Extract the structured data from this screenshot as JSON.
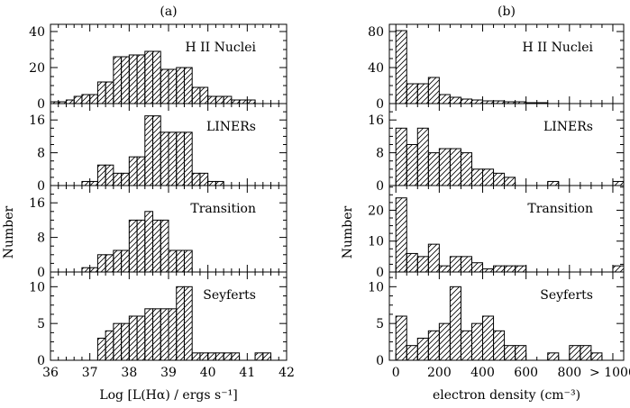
{
  "chart_data": [
    {
      "type": "bar",
      "panel_title": "(a)",
      "xlabel": "Log [L(Hα) / ergs s⁻¹]",
      "ylabel": "Number",
      "xlim": [
        36,
        42
      ],
      "x_ticks": [
        "36",
        "37",
        "38",
        "39",
        "40",
        "41",
        "42"
      ],
      "bin_width": 0.2,
      "subplots": [
        {
          "name": "H II Nuclei",
          "ylim": [
            0,
            44
          ],
          "y_ticks": [
            "0",
            "20",
            "40"
          ],
          "bins": [
            {
              "x0": 36.0,
              "x1": 36.2,
              "count": 1
            },
            {
              "x0": 36.2,
              "x1": 36.4,
              "count": 1
            },
            {
              "x0": 36.4,
              "x1": 36.6,
              "count": 2
            },
            {
              "x0": 36.6,
              "x1": 36.8,
              "count": 4
            },
            {
              "x0": 36.8,
              "x1": 37.0,
              "count": 5
            },
            {
              "x0": 37.0,
              "x1": 37.2,
              "count": 5
            },
            {
              "x0": 37.2,
              "x1": 37.4,
              "count": 12
            },
            {
              "x0": 37.4,
              "x1": 37.6,
              "count": 12
            },
            {
              "x0": 37.6,
              "x1": 37.8,
              "count": 26
            },
            {
              "x0": 37.8,
              "x1": 38.0,
              "count": 26
            },
            {
              "x0": 38.0,
              "x1": 38.2,
              "count": 27
            },
            {
              "x0": 38.2,
              "x1": 38.4,
              "count": 27
            },
            {
              "x0": 38.4,
              "x1": 38.6,
              "count": 29
            },
            {
              "x0": 38.6,
              "x1": 38.8,
              "count": 29
            },
            {
              "x0": 38.8,
              "x1": 39.0,
              "count": 19
            },
            {
              "x0": 39.0,
              "x1": 39.2,
              "count": 19
            },
            {
              "x0": 39.2,
              "x1": 39.4,
              "count": 20
            },
            {
              "x0": 39.4,
              "x1": 39.6,
              "count": 20
            },
            {
              "x0": 39.6,
              "x1": 39.8,
              "count": 9
            },
            {
              "x0": 39.8,
              "x1": 40.0,
              "count": 9
            },
            {
              "x0": 40.0,
              "x1": 40.2,
              "count": 4
            },
            {
              "x0": 40.2,
              "x1": 40.4,
              "count": 4
            },
            {
              "x0": 40.4,
              "x1": 40.6,
              "count": 4
            },
            {
              "x0": 40.6,
              "x1": 40.8,
              "count": 2
            },
            {
              "x0": 40.8,
              "x1": 41.0,
              "count": 2
            },
            {
              "x0": 41.0,
              "x1": 41.2,
              "count": 2
            }
          ]
        },
        {
          "name": "LINERs",
          "ylim": [
            0,
            20
          ],
          "y_ticks": [
            "0",
            "8",
            "16"
          ],
          "bins": [
            {
              "x0": 36.8,
              "x1": 37.0,
              "count": 1
            },
            {
              "x0": 37.0,
              "x1": 37.2,
              "count": 1
            },
            {
              "x0": 37.2,
              "x1": 37.4,
              "count": 5
            },
            {
              "x0": 37.4,
              "x1": 37.6,
              "count": 5
            },
            {
              "x0": 37.6,
              "x1": 37.8,
              "count": 3
            },
            {
              "x0": 37.8,
              "x1": 38.0,
              "count": 3
            },
            {
              "x0": 38.0,
              "x1": 38.2,
              "count": 7
            },
            {
              "x0": 38.2,
              "x1": 38.4,
              "count": 7
            },
            {
              "x0": 38.4,
              "x1": 38.6,
              "count": 17
            },
            {
              "x0": 38.6,
              "x1": 38.8,
              "count": 17
            },
            {
              "x0": 38.8,
              "x1": 39.0,
              "count": 13
            },
            {
              "x0": 39.0,
              "x1": 39.2,
              "count": 13
            },
            {
              "x0": 39.2,
              "x1": 39.4,
              "count": 13
            },
            {
              "x0": 39.4,
              "x1": 39.6,
              "count": 13
            },
            {
              "x0": 39.6,
              "x1": 39.8,
              "count": 3
            },
            {
              "x0": 39.8,
              "x1": 40.0,
              "count": 3
            },
            {
              "x0": 40.0,
              "x1": 40.2,
              "count": 1
            },
            {
              "x0": 40.2,
              "x1": 40.4,
              "count": 1
            }
          ]
        },
        {
          "name": "Transition",
          "ylim": [
            0,
            20
          ],
          "y_ticks": [
            "0",
            "8",
            "16"
          ],
          "bins": [
            {
              "x0": 36.8,
              "x1": 37.0,
              "count": 1
            },
            {
              "x0": 37.0,
              "x1": 37.2,
              "count": 1
            },
            {
              "x0": 37.2,
              "x1": 37.4,
              "count": 4
            },
            {
              "x0": 37.4,
              "x1": 37.6,
              "count": 4
            },
            {
              "x0": 37.6,
              "x1": 37.8,
              "count": 5
            },
            {
              "x0": 37.8,
              "x1": 38.0,
              "count": 5
            },
            {
              "x0": 38.0,
              "x1": 38.2,
              "count": 12
            },
            {
              "x0": 38.2,
              "x1": 38.4,
              "count": 12
            },
            {
              "x0": 38.4,
              "x1": 38.6,
              "count": 14
            },
            {
              "x0": 38.6,
              "x1": 38.8,
              "count": 12
            },
            {
              "x0": 38.8,
              "x1": 39.0,
              "count": 12
            },
            {
              "x0": 39.0,
              "x1": 39.2,
              "count": 5
            },
            {
              "x0": 39.2,
              "x1": 39.4,
              "count": 5
            },
            {
              "x0": 39.4,
              "x1": 39.6,
              "count": 5
            }
          ]
        },
        {
          "name": "Seyferts",
          "ylim": [
            0,
            12
          ],
          "y_ticks": [
            "0",
            "5",
            "10"
          ],
          "bins": [
            {
              "x0": 37.2,
              "x1": 37.4,
              "count": 3
            },
            {
              "x0": 37.4,
              "x1": 37.6,
              "count": 4
            },
            {
              "x0": 37.6,
              "x1": 37.8,
              "count": 5
            },
            {
              "x0": 37.8,
              "x1": 38.0,
              "count": 5
            },
            {
              "x0": 38.0,
              "x1": 38.2,
              "count": 6
            },
            {
              "x0": 38.2,
              "x1": 38.4,
              "count": 6
            },
            {
              "x0": 38.4,
              "x1": 38.6,
              "count": 7
            },
            {
              "x0": 38.6,
              "x1": 38.8,
              "count": 7
            },
            {
              "x0": 38.8,
              "x1": 39.0,
              "count": 7
            },
            {
              "x0": 39.0,
              "x1": 39.2,
              "count": 7
            },
            {
              "x0": 39.2,
              "x1": 39.4,
              "count": 10
            },
            {
              "x0": 39.4,
              "x1": 39.6,
              "count": 10
            },
            {
              "x0": 39.6,
              "x1": 39.8,
              "count": 1
            },
            {
              "x0": 39.8,
              "x1": 40.0,
              "count": 1
            },
            {
              "x0": 40.0,
              "x1": 40.2,
              "count": 1
            },
            {
              "x0": 40.2,
              "x1": 40.4,
              "count": 1
            },
            {
              "x0": 40.4,
              "x1": 40.6,
              "count": 1
            },
            {
              "x0": 40.6,
              "x1": 40.8,
              "count": 1
            },
            {
              "x0": 41.2,
              "x1": 41.4,
              "count": 1
            },
            {
              "x0": 41.4,
              "x1": 41.6,
              "count": 1
            }
          ]
        }
      ]
    },
    {
      "type": "bar",
      "panel_title": "(b)",
      "xlabel": "electron density (cm⁻³)",
      "ylabel": "Number",
      "xlim": [
        -30,
        1050
      ],
      "x_ticks": [
        "0",
        "200",
        "400",
        "600",
        "800",
        "> 1000"
      ],
      "bin_width": 50,
      "subplots": [
        {
          "name": "H II Nuclei",
          "ylim": [
            0,
            88
          ],
          "y_ticks": [
            "0",
            "40",
            "80"
          ],
          "bins": [
            {
              "x0": 0,
              "x1": 50,
              "count": 81
            },
            {
              "x0": 50,
              "x1": 100,
              "count": 22
            },
            {
              "x0": 100,
              "x1": 150,
              "count": 22
            },
            {
              "x0": 150,
              "x1": 200,
              "count": 29
            },
            {
              "x0": 200,
              "x1": 250,
              "count": 10
            },
            {
              "x0": 250,
              "x1": 300,
              "count": 7
            },
            {
              "x0": 300,
              "x1": 350,
              "count": 5
            },
            {
              "x0": 350,
              "x1": 400,
              "count": 4
            },
            {
              "x0": 400,
              "x1": 450,
              "count": 3
            },
            {
              "x0": 450,
              "x1": 500,
              "count": 3
            },
            {
              "x0": 500,
              "x1": 550,
              "count": 2
            },
            {
              "x0": 550,
              "x1": 600,
              "count": 2
            },
            {
              "x0": 600,
              "x1": 650,
              "count": 1
            },
            {
              "x0": 650,
              "x1": 700,
              "count": 1
            }
          ]
        },
        {
          "name": "LINERs",
          "ylim": [
            0,
            20
          ],
          "y_ticks": [
            "0",
            "8",
            "16"
          ],
          "bins": [
            {
              "x0": 0,
              "x1": 50,
              "count": 14
            },
            {
              "x0": 50,
              "x1": 100,
              "count": 10
            },
            {
              "x0": 100,
              "x1": 150,
              "count": 14
            },
            {
              "x0": 150,
              "x1": 200,
              "count": 8
            },
            {
              "x0": 200,
              "x1": 250,
              "count": 9
            },
            {
              "x0": 250,
              "x1": 300,
              "count": 9
            },
            {
              "x0": 300,
              "x1": 350,
              "count": 8
            },
            {
              "x0": 350,
              "x1": 400,
              "count": 4
            },
            {
              "x0": 400,
              "x1": 450,
              "count": 4
            },
            {
              "x0": 450,
              "x1": 500,
              "count": 3
            },
            {
              "x0": 500,
              "x1": 550,
              "count": 2
            },
            {
              "x0": 700,
              "x1": 750,
              "count": 1
            },
            {
              "x0": 1000,
              "x1": 1050,
              "count": 1
            }
          ]
        },
        {
          "name": "Transition",
          "ylim": [
            0,
            28
          ],
          "y_ticks": [
            "0",
            "10",
            "20"
          ],
          "bins": [
            {
              "x0": 0,
              "x1": 50,
              "count": 24
            },
            {
              "x0": 50,
              "x1": 100,
              "count": 6
            },
            {
              "x0": 100,
              "x1": 150,
              "count": 5
            },
            {
              "x0": 150,
              "x1": 200,
              "count": 9
            },
            {
              "x0": 200,
              "x1": 250,
              "count": 2
            },
            {
              "x0": 250,
              "x1": 300,
              "count": 5
            },
            {
              "x0": 300,
              "x1": 350,
              "count": 5
            },
            {
              "x0": 350,
              "x1": 400,
              "count": 3
            },
            {
              "x0": 400,
              "x1": 450,
              "count": 1
            },
            {
              "x0": 450,
              "x1": 500,
              "count": 2
            },
            {
              "x0": 500,
              "x1": 550,
              "count": 2
            },
            {
              "x0": 550,
              "x1": 600,
              "count": 2
            },
            {
              "x0": 1000,
              "x1": 1050,
              "count": 2
            }
          ]
        },
        {
          "name": "Seyferts",
          "ylim": [
            0,
            12
          ],
          "y_ticks": [
            "0",
            "5",
            "10"
          ],
          "bins": [
            {
              "x0": 0,
              "x1": 50,
              "count": 6
            },
            {
              "x0": 50,
              "x1": 100,
              "count": 2
            },
            {
              "x0": 100,
              "x1": 150,
              "count": 3
            },
            {
              "x0": 150,
              "x1": 200,
              "count": 4
            },
            {
              "x0": 200,
              "x1": 250,
              "count": 5
            },
            {
              "x0": 250,
              "x1": 300,
              "count": 10
            },
            {
              "x0": 300,
              "x1": 350,
              "count": 4
            },
            {
              "x0": 350,
              "x1": 400,
              "count": 5
            },
            {
              "x0": 400,
              "x1": 450,
              "count": 6
            },
            {
              "x0": 450,
              "x1": 500,
              "count": 4
            },
            {
              "x0": 500,
              "x1": 550,
              "count": 2
            },
            {
              "x0": 550,
              "x1": 600,
              "count": 2
            },
            {
              "x0": 700,
              "x1": 750,
              "count": 1
            },
            {
              "x0": 800,
              "x1": 850,
              "count": 2
            },
            {
              "x0": 850,
              "x1": 900,
              "count": 2
            },
            {
              "x0": 900,
              "x1": 950,
              "count": 1
            }
          ]
        }
      ]
    }
  ]
}
